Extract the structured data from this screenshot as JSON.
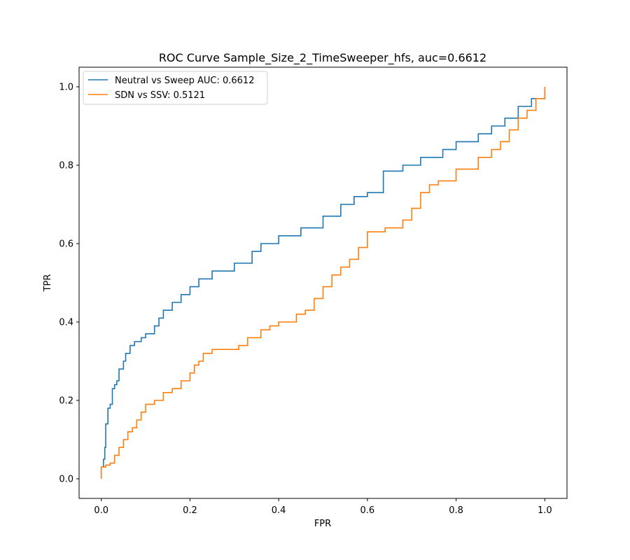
{
  "chart_data": {
    "type": "line",
    "title": "ROC Curve Sample_Size_2_TimeSweeper_hfs, auc=0.6612",
    "xlabel": "FPR",
    "ylabel": "TPR",
    "xlim": [
      -0.05,
      1.05
    ],
    "ylim": [
      -0.05,
      1.05
    ],
    "xticks": [
      0.0,
      0.2,
      0.4,
      0.6,
      0.8,
      1.0
    ],
    "yticks": [
      0.0,
      0.2,
      0.4,
      0.6,
      0.8,
      1.0
    ],
    "xtick_labels": [
      "0.0",
      "0.2",
      "0.4",
      "0.6",
      "0.8",
      "1.0"
    ],
    "ytick_labels": [
      "0.0",
      "0.2",
      "0.4",
      "0.6",
      "0.8",
      "1.0"
    ],
    "grid": false,
    "legend_position": "top-left",
    "series": [
      {
        "name": "Neutral vs Sweep AUC: 0.6612",
        "color": "#1f77b4",
        "x": [
          0.0,
          0.0,
          0.005,
          0.008,
          0.01,
          0.015,
          0.02,
          0.025,
          0.03,
          0.035,
          0.04,
          0.05,
          0.055,
          0.065,
          0.075,
          0.09,
          0.1,
          0.12,
          0.13,
          0.14,
          0.16,
          0.18,
          0.2,
          0.22,
          0.25,
          0.3,
          0.34,
          0.36,
          0.4,
          0.45,
          0.5,
          0.54,
          0.57,
          0.6,
          0.636,
          0.636,
          0.68,
          0.72,
          0.77,
          0.8,
          0.85,
          0.88,
          0.91,
          0.94,
          0.97,
          1.0
        ],
        "y": [
          0.0,
          0.03,
          0.05,
          0.08,
          0.14,
          0.18,
          0.19,
          0.23,
          0.24,
          0.25,
          0.28,
          0.3,
          0.32,
          0.34,
          0.35,
          0.36,
          0.37,
          0.39,
          0.41,
          0.43,
          0.45,
          0.47,
          0.49,
          0.51,
          0.53,
          0.55,
          0.58,
          0.6,
          0.62,
          0.64,
          0.67,
          0.7,
          0.72,
          0.73,
          0.75,
          0.785,
          0.8,
          0.82,
          0.84,
          0.86,
          0.88,
          0.9,
          0.92,
          0.95,
          0.97,
          0.99
        ]
      },
      {
        "name": "SDN vs SSV: 0.5121",
        "color": "#ff7f0e",
        "x": [
          0.0,
          0.0,
          0.01,
          0.02,
          0.03,
          0.04,
          0.05,
          0.06,
          0.07,
          0.08,
          0.09,
          0.1,
          0.12,
          0.14,
          0.16,
          0.18,
          0.2,
          0.21,
          0.22,
          0.23,
          0.25,
          0.28,
          0.31,
          0.33,
          0.36,
          0.38,
          0.4,
          0.44,
          0.46,
          0.48,
          0.5,
          0.52,
          0.54,
          0.56,
          0.58,
          0.6,
          0.64,
          0.68,
          0.7,
          0.72,
          0.74,
          0.76,
          0.8,
          0.85,
          0.88,
          0.9,
          0.92,
          0.94,
          0.96,
          0.98,
          1.0
        ],
        "y": [
          0.0,
          0.03,
          0.035,
          0.04,
          0.06,
          0.08,
          0.1,
          0.12,
          0.13,
          0.15,
          0.17,
          0.19,
          0.2,
          0.22,
          0.23,
          0.25,
          0.27,
          0.29,
          0.3,
          0.32,
          0.33,
          0.33,
          0.34,
          0.36,
          0.38,
          0.39,
          0.4,
          0.42,
          0.43,
          0.46,
          0.49,
          0.52,
          0.54,
          0.56,
          0.59,
          0.63,
          0.64,
          0.66,
          0.69,
          0.73,
          0.75,
          0.76,
          0.79,
          0.82,
          0.84,
          0.86,
          0.89,
          0.92,
          0.94,
          0.97,
          1.0
        ]
      }
    ]
  }
}
